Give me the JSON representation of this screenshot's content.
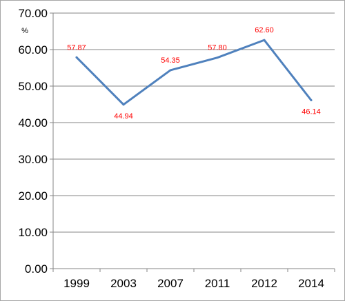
{
  "chart_data": {
    "type": "line",
    "unit_label": "%",
    "categories": [
      "1999",
      "2003",
      "2007",
      "2011",
      "2012",
      "2014"
    ],
    "series": [
      {
        "values": [
          57.87,
          44.94,
          54.35,
          57.8,
          62.6,
          46.14
        ]
      }
    ],
    "data_labels": [
      "57.87",
      "44.94",
      "54.35",
      "57.80",
      "62.60",
      "46.14"
    ],
    "y_ticks": [
      "0.00",
      "10.00",
      "20.00",
      "30.00",
      "40.00",
      "50.00",
      "60.00",
      "70.00"
    ],
    "ylim": [
      0,
      70
    ],
    "grid": true,
    "legend": "none",
    "colors": {
      "line": "#4f81bd",
      "data_label": "#ff0000",
      "grid": "#868686"
    }
  }
}
